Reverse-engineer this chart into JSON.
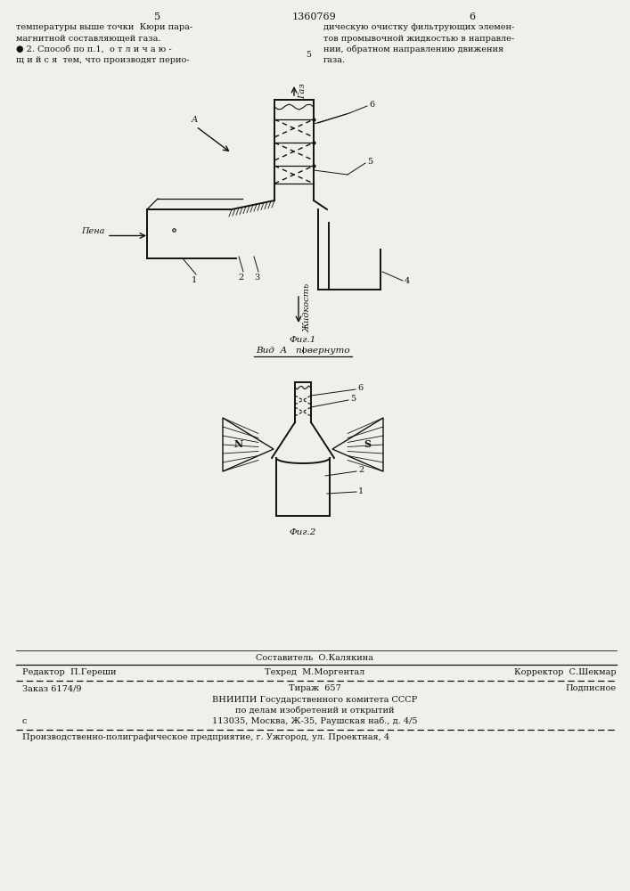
{
  "bg_color": "#f0f0ea",
  "page_number_left": "5",
  "page_number_center": "1360769",
  "page_number_right": "6",
  "text_left_col": [
    "температуры выше точки  Кюри пара-",
    "магнитной составляющей газа."
  ],
  "text_right_col": [
    "дическую очистку фильтрующих элемен-",
    "тов промывочной жидкостью в направле-",
    "нии, обратном направлению движения",
    "газа."
  ],
  "text_claim2_left": [
    "● 2. Способ по п.1,  о т л и ч а ю -",
    "щ и й с я  тем, что производят перио-"
  ],
  "fig1_label": "Фиг.1",
  "fig2_label": "Фиг.2",
  "view_label": "Вид  А   повернуто",
  "gas_label": "Газ",
  "liquid_label": "Жидкость",
  "foam_label": "Пена",
  "view_arrow_label": "А",
  "footer_editor": "Редактор  П.Гереши",
  "footer_composer": "Составитель  О.Калякина",
  "footer_techred": "Техред  М.Моргентал",
  "footer_corrector": "Корректор  С.Шекмар",
  "footer_order": "Заказ 6174/9",
  "footer_print": "Тираж  657",
  "footer_signed": "Подписное",
  "footer_org1": "ВНИИПИ Государственного комитета СССР",
  "footer_org2": "по делам изобретений и открытий",
  "footer_addr": "113035, Москва, Ж-35, Раушская наб., д. 4/5",
  "footer_producer": "Производственно-полиграфическое предприятие, г. Ужгород, ул. Проектная, 4"
}
